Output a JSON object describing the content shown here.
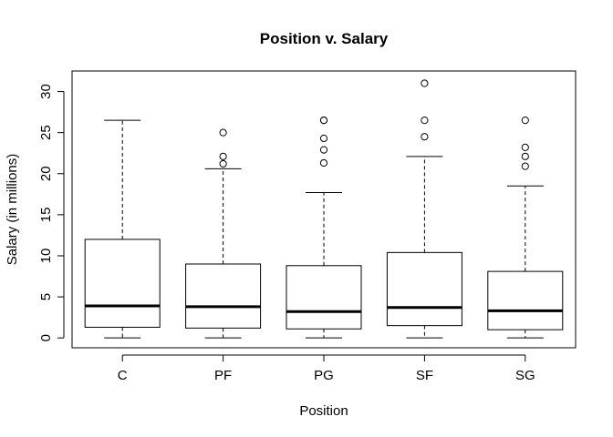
{
  "chart_data": {
    "type": "box",
    "title": "Position v. Salary",
    "xlabel": "Position",
    "ylabel": "Salary (in millions)",
    "ylim": [
      -1.2,
      32.5
    ],
    "yticks": [
      0,
      5,
      10,
      15,
      20,
      25,
      30
    ],
    "categories": [
      "C",
      "PF",
      "PG",
      "SF",
      "SG"
    ],
    "boxes": [
      {
        "category": "C",
        "whisker_low": 0.0,
        "q1": 1.3,
        "median": 3.9,
        "q3": 12.0,
        "whisker_high": 26.5,
        "outliers": []
      },
      {
        "category": "PF",
        "whisker_low": 0.0,
        "q1": 1.2,
        "median": 3.8,
        "q3": 9.0,
        "whisker_high": 20.6,
        "outliers": [
          21.2,
          22.1,
          25.0
        ]
      },
      {
        "category": "PG",
        "whisker_low": 0.0,
        "q1": 1.1,
        "median": 3.2,
        "q3": 8.8,
        "whisker_high": 17.7,
        "outliers": [
          21.3,
          22.9,
          24.3,
          26.5,
          26.5
        ]
      },
      {
        "category": "SF",
        "whisker_low": 0.0,
        "q1": 1.5,
        "median": 3.7,
        "q3": 10.4,
        "whisker_high": 22.1,
        "outliers": [
          24.5,
          26.5,
          31.0
        ]
      },
      {
        "category": "SG",
        "whisker_low": 0.0,
        "q1": 1.0,
        "median": 3.3,
        "q3": 8.1,
        "whisker_high": 18.5,
        "outliers": [
          20.9,
          22.1,
          23.2,
          26.5
        ]
      }
    ]
  }
}
